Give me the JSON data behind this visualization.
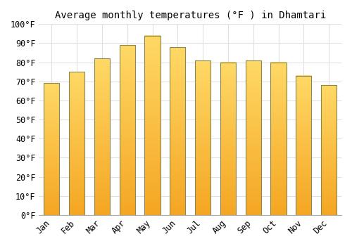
{
  "title": "Average monthly temperatures (°F ) in Dhamtari",
  "months": [
    "Jan",
    "Feb",
    "Mar",
    "Apr",
    "May",
    "Jun",
    "Jul",
    "Aug",
    "Sep",
    "Oct",
    "Nov",
    "Dec"
  ],
  "values": [
    69,
    75,
    82,
    89,
    94,
    88,
    81,
    80,
    81,
    80,
    73,
    68
  ],
  "bar_color_bottom": "#F5A623",
  "bar_color_top": "#FFD966",
  "bar_edge_color": "#888855",
  "background_color": "#FFFFFF",
  "ylim": [
    0,
    100
  ],
  "yticks": [
    0,
    10,
    20,
    30,
    40,
    50,
    60,
    70,
    80,
    90,
    100
  ],
  "grid_color": "#E0E0E0",
  "title_fontsize": 10,
  "tick_fontsize": 8.5,
  "bar_width": 0.62
}
